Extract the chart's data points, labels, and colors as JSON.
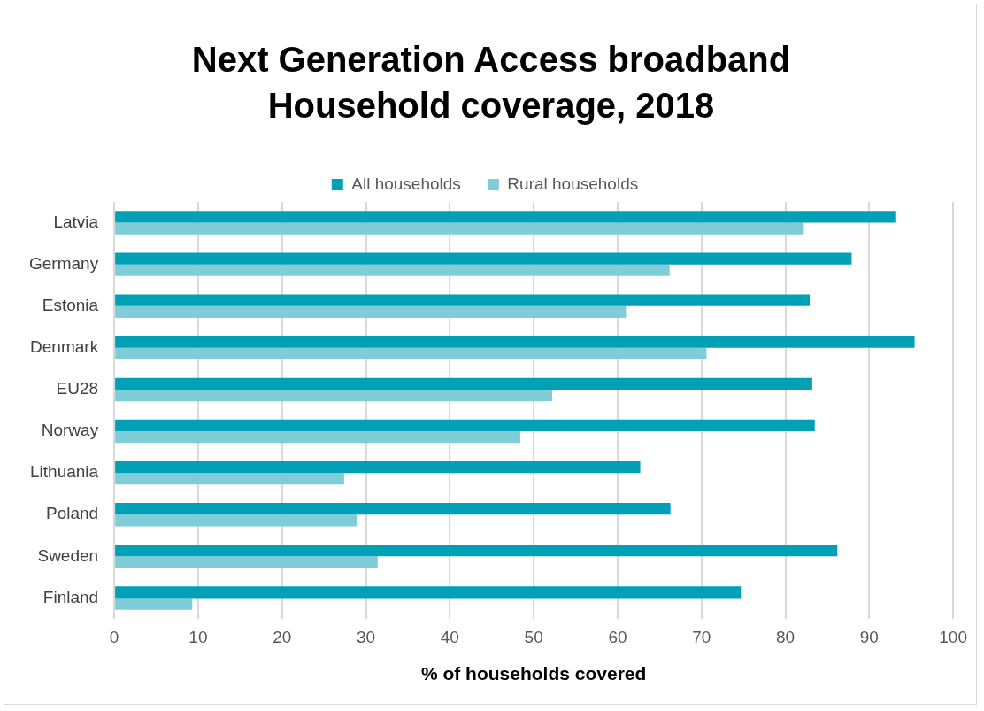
{
  "chart_data": {
    "type": "bar",
    "orientation": "horizontal",
    "title": "Next Generation Access broadband Household coverage, 2018",
    "xlabel": "% of households covered",
    "categories": [
      "Latvia",
      "Germany",
      "Estonia",
      "Denmark",
      "EU28",
      "Norway",
      "Lithuania",
      "Poland",
      "Sweden",
      "Finland"
    ],
    "series": [
      {
        "name": "All households",
        "color": "#00a0b7",
        "values": [
          93.1,
          87.9,
          82.9,
          95.4,
          83.2,
          83.5,
          62.7,
          66.3,
          86.2,
          74.7
        ]
      },
      {
        "name": "Rural households",
        "color": "#7fcdd8",
        "values": [
          82.2,
          66.2,
          61.0,
          70.6,
          52.2,
          48.4,
          27.4,
          29.0,
          31.4,
          9.3
        ]
      }
    ],
    "xlim": [
      0,
      100
    ],
    "xticks": [
      0,
      10,
      20,
      30,
      40,
      50,
      60,
      70,
      80,
      90,
      100
    ],
    "grid": "x",
    "legend": "top"
  }
}
